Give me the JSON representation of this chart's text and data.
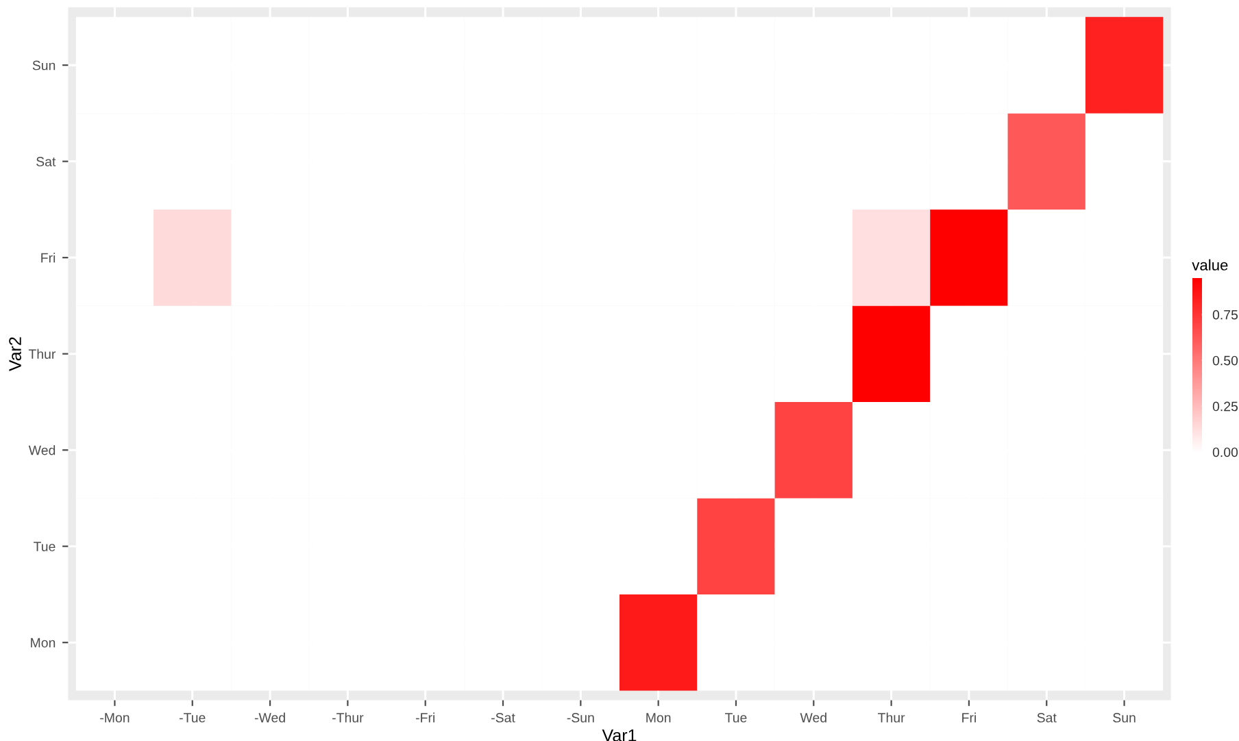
{
  "chart_data": {
    "type": "heatmap",
    "xlabel": "Var1",
    "ylabel": "Var2",
    "clabel": "value",
    "categories": [
      "-Mon",
      "-Tue",
      "-Wed",
      "-Thur",
      "-Fri",
      "-Sat",
      "-Sun",
      "Mon",
      "Tue",
      "Wed",
      "Thur",
      "Fri",
      "Sat",
      "Sun"
    ],
    "y_categories": [
      "Sun",
      "Sat",
      "Fri",
      "Thur",
      "Wed",
      "Tue",
      "Mon"
    ],
    "cells": [
      [
        0,
        0,
        0,
        0,
        0,
        0,
        0,
        0,
        0,
        0,
        0,
        0,
        0,
        0.83
      ],
      [
        0,
        0,
        0,
        0,
        0,
        0,
        0,
        0,
        0,
        0,
        0,
        0,
        0.62,
        0
      ],
      [
        0,
        0.14,
        0,
        0,
        0,
        0,
        0,
        0,
        0,
        0,
        0.12,
        0.95,
        0,
        0
      ],
      [
        0,
        0,
        0,
        0,
        0,
        0,
        0,
        0,
        0,
        0,
        0.95,
        0,
        0,
        0
      ],
      [
        0,
        0,
        0,
        0,
        0,
        0,
        0,
        0,
        0,
        0.7,
        0,
        0,
        0,
        0
      ],
      [
        0,
        0,
        0,
        0,
        0,
        0,
        0,
        0,
        0.7,
        0,
        0,
        0,
        0,
        0
      ],
      [
        0,
        0,
        0,
        0,
        0,
        0,
        0,
        0.85,
        0,
        0,
        0,
        0,
        0,
        0
      ]
    ],
    "clim": [
      0,
      0.95
    ],
    "cticks": [
      {
        "value": 0,
        "label": "0.00"
      },
      0.25,
      {
        "value": 0.5,
        "label": "0.50"
      },
      0.75
    ],
    "colors": [
      "#ffffff",
      "#ff0000"
    ],
    "grid": true
  }
}
